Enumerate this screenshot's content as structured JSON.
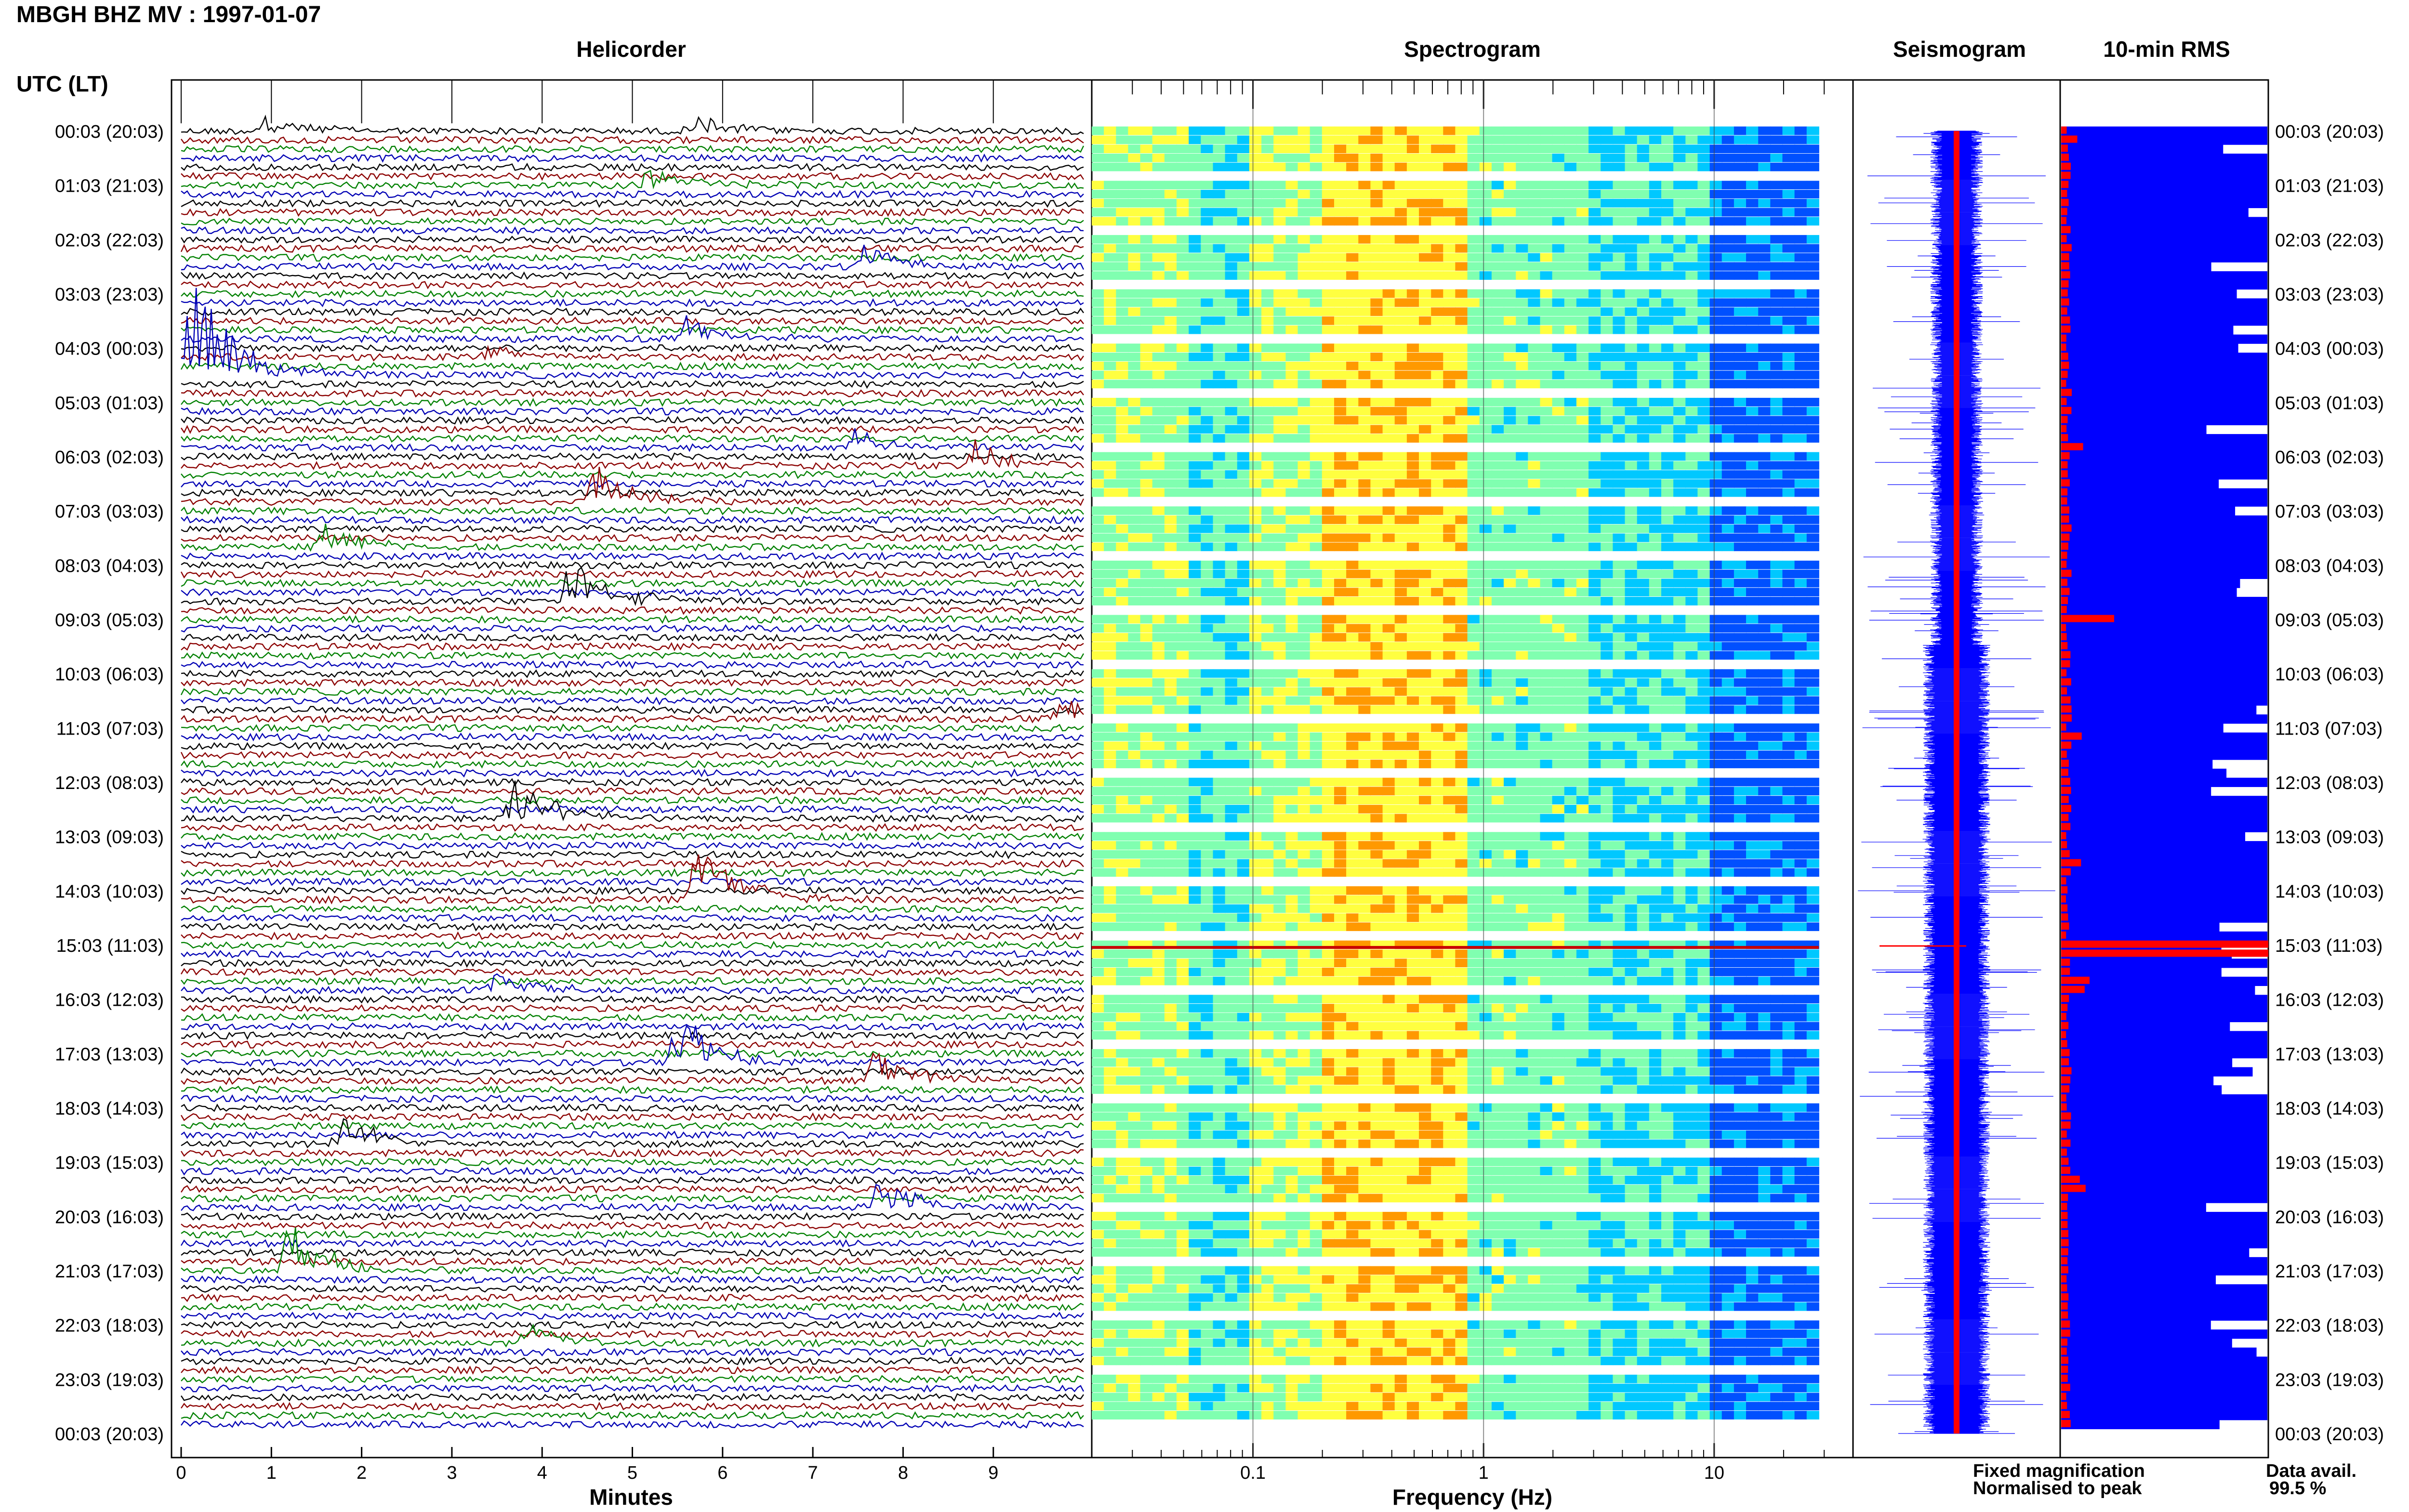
{
  "chart_data": [
    {
      "type": "heatmap",
      "panel": "helicorder",
      "figure_title": "MBGH BHZ MV : 1997-01-07",
      "title": "Helicorder",
      "xlabel": "Minutes",
      "ylabel": "UTC (LT)",
      "x_ticks": [
        "0",
        "1",
        "2",
        "3",
        "4",
        "5",
        "6",
        "7",
        "8",
        "9"
      ],
      "xlim": [
        0,
        10
      ],
      "y_tick_labels": [
        "00:03 (20:03)",
        "01:03 (21:03)",
        "02:03 (22:03)",
        "03:03 (23:03)",
        "04:03 (00:03)",
        "05:03 (01:03)",
        "06:03 (02:03)",
        "07:03 (03:03)",
        "08:03 (04:03)",
        "09:03 (05:03)",
        "10:03 (06:03)",
        "11:03 (07:03)",
        "12:03 (08:03)",
        "13:03 (09:03)",
        "14:03 (10:03)",
        "15:03 (11:03)",
        "16:03 (12:03)",
        "17:03 (13:03)",
        "18:03 (14:03)",
        "19:03 (15:03)",
        "20:03 (16:03)",
        "21:03 (17:03)",
        "22:03 (18:03)",
        "23:03 (19:03)",
        "00:03 (20:03)"
      ],
      "trace_colors": [
        "#000000",
        "#8b0000",
        "#008000",
        "#0000b4"
      ],
      "events": [
        {
          "hour": 0.0,
          "minute": 0.9,
          "amp": 0.6
        },
        {
          "hour": 0.0,
          "minute": 5.7,
          "amp": 0.6
        },
        {
          "hour": 1.0,
          "minute": 5.2,
          "amp": 0.9
        },
        {
          "hour": 2.5,
          "minute": 7.6,
          "amp": 1.0
        },
        {
          "hour": 3.8,
          "minute": 5.6,
          "amp": 0.8
        },
        {
          "hour": 4.1,
          "minute": 3.4,
          "amp": 0.6
        },
        {
          "hour": 4.5,
          "minute": 0.1,
          "amp": 4.5
        },
        {
          "hour": 5.8,
          "minute": 7.4,
          "amp": 0.8
        },
        {
          "hour": 6.2,
          "minute": 8.8,
          "amp": 0.9
        },
        {
          "hour": 6.9,
          "minute": 4.6,
          "amp": 1.4
        },
        {
          "hour": 7.6,
          "minute": 1.6,
          "amp": 1.0
        },
        {
          "hour": 8.7,
          "minute": 4.3,
          "amp": 2.0
        },
        {
          "hour": 10.8,
          "minute": 9.7,
          "amp": 0.9
        },
        {
          "hour": 12.6,
          "minute": 3.7,
          "amp": 1.9
        },
        {
          "hour": 14.2,
          "minute": 5.7,
          "amp": 2.6
        },
        {
          "hour": 15.9,
          "minute": 3.5,
          "amp": 0.8
        },
        {
          "hour": 17.2,
          "minute": 5.5,
          "amp": 2.3
        },
        {
          "hour": 17.5,
          "minute": 7.7,
          "amp": 1.3
        },
        {
          "hour": 18.6,
          "minute": 1.8,
          "amp": 1.2
        },
        {
          "hour": 19.9,
          "minute": 7.7,
          "amp": 1.2
        },
        {
          "hour": 21.0,
          "minute": 1.2,
          "amp": 2.0
        },
        {
          "hour": 22.3,
          "minute": 3.8,
          "amp": 0.8
        }
      ]
    },
    {
      "type": "heatmap",
      "panel": "spectrogram",
      "title": "Spectrogram",
      "xlabel": "Frequency (Hz)",
      "x_scale": "log",
      "xlim": [
        0.02,
        40
      ],
      "x_ticks": [
        "0.1",
        "1",
        "10"
      ],
      "peak_frequency_band_hz": [
        0.2,
        0.8
      ],
      "colormap": [
        "#0000aa",
        "#0050ff",
        "#00c8ff",
        "#80ffb0",
        "#ffff40",
        "#ff9900",
        "#c80000"
      ]
    },
    {
      "type": "line",
      "panel": "seismogram",
      "title": "Seismogram",
      "legend": [
        {
          "name": "Fixed magnification",
          "color": "#0000ff"
        },
        {
          "name": "Normalised to peak",
          "color": "#ff0000"
        }
      ]
    },
    {
      "type": "bar",
      "panel": "rms",
      "title": "10-min RMS",
      "orientation": "horizontal",
      "colors": {
        "fixed": "#0000ff",
        "normalised": "#ff0000"
      },
      "peak_hour": 15.1,
      "data_availability_label": "Data avail.",
      "data_availability_value": "99.5 %"
    }
  ]
}
